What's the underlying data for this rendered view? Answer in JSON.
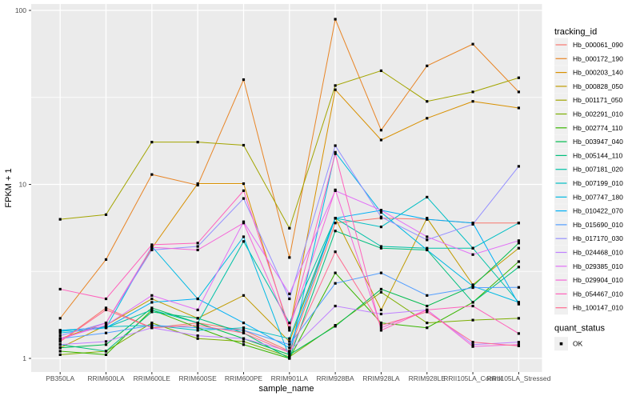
{
  "chart_data": {
    "type": "line",
    "title": "",
    "xlabel": "sample_name",
    "ylabel": "FPKM + 1",
    "y_scale": "log10",
    "ylim": [
      1,
      100
    ],
    "y_major_ticks": [
      1,
      10,
      100
    ],
    "y_minor_gridlines": [
      3.1623,
      31.623
    ],
    "grid": "on",
    "point_marker": "black-square",
    "legend_position": "right",
    "categories": [
      "PB350LA",
      "RRIM600LA",
      "RRIM600LE",
      "RRIM600SE",
      "RRIM600PE",
      "RRIM901LA",
      "RRIM928BA",
      "RRIM928LA",
      "RRIM928LE",
      "RRII105LA_Control",
      "RRII105LA_Stressed"
    ],
    "series": [
      {
        "name": "Hb_000061_090",
        "color": "#F8766D",
        "values": [
          1.25,
          1.95,
          1.5,
          1.6,
          1.45,
          1.1,
          6.0,
          6.4,
          6.3,
          6.0,
          6.0
        ]
      },
      {
        "name": "Hb_000172_190",
        "color": "#E88526",
        "values": [
          1.7,
          3.7,
          11.4,
          9.9,
          40,
          3.8,
          89,
          20.5,
          48,
          64,
          34
        ]
      },
      {
        "name": "Hb_000203_140",
        "color": "#D89000",
        "values": [
          1.3,
          1.6,
          4.3,
          10.1,
          10.1,
          1.45,
          35,
          18,
          24,
          30,
          27.5
        ]
      },
      {
        "name": "Hb_000828_050",
        "color": "#C09B00",
        "values": [
          1.15,
          1.55,
          2.2,
          1.7,
          2.3,
          1.25,
          6.4,
          1.9,
          6.4,
          2.65,
          4.3
        ]
      },
      {
        "name": "Hb_001171_050",
        "color": "#A3A500",
        "values": [
          6.3,
          6.7,
          17.5,
          17.5,
          16.8,
          5.6,
          37,
          45,
          30,
          34,
          41
        ]
      },
      {
        "name": "Hb_002291_010",
        "color": "#7CAE00",
        "values": [
          1.05,
          1.1,
          1.6,
          1.3,
          1.25,
          1.02,
          1.55,
          2.4,
          1.6,
          1.66,
          1.7
        ]
      },
      {
        "name": "Hb_002774_110",
        "color": "#39B600",
        "values": [
          1.1,
          1.05,
          1.9,
          1.5,
          1.2,
          1.0,
          3.1,
          1.6,
          1.5,
          2.1,
          3.6
        ]
      },
      {
        "name": "Hb_003947_040",
        "color": "#00BB4E",
        "values": [
          1.15,
          1.2,
          1.95,
          1.6,
          1.3,
          1.05,
          1.53,
          2.5,
          2.0,
          2.6,
          4.6
        ]
      },
      {
        "name": "Hb_005144_110",
        "color": "#00BF7D",
        "values": [
          1.2,
          1.1,
          1.85,
          1.7,
          1.4,
          1.0,
          5.4,
          4.3,
          4.2,
          2.1,
          3.35
        ]
      },
      {
        "name": "Hb_007181_020",
        "color": "#00C1A7",
        "values": [
          1.45,
          1.5,
          1.9,
          1.6,
          4.7,
          1.6,
          6.4,
          4.4,
          4.3,
          4.3,
          2.1
        ]
      },
      {
        "name": "Hb_007199_010",
        "color": "#00BFC4",
        "values": [
          1.43,
          1.52,
          1.55,
          1.45,
          1.5,
          1.3,
          6.4,
          5.7,
          8.45,
          4.3,
          6.0
        ]
      },
      {
        "name": "Hb_007747_180",
        "color": "#00B9E3",
        "values": [
          1.4,
          1.5,
          4.4,
          2.2,
          5.0,
          1.02,
          15.3,
          6.9,
          4.2,
          2.6,
          2.1
        ]
      },
      {
        "name": "Hb_010422_070",
        "color": "#00B0F6",
        "values": [
          1.45,
          1.5,
          2.1,
          2.2,
          1.6,
          1.15,
          6.4,
          7.1,
          6.3,
          6.0,
          2.05
        ]
      },
      {
        "name": "Hb_015690_010",
        "color": "#529EFF",
        "values": [
          1.3,
          1.4,
          1.55,
          1.5,
          1.45,
          1.2,
          2.7,
          3.1,
          2.3,
          2.55,
          2.56
        ]
      },
      {
        "name": "Hb_017170_030",
        "color": "#9590FF",
        "values": [
          1.35,
          1.6,
          4.2,
          4.4,
          8.3,
          2.2,
          16.7,
          6.5,
          4.8,
          5.9,
          12.7
        ]
      },
      {
        "name": "Hb_024468_010",
        "color": "#BF80FF",
        "values": [
          1.2,
          1.25,
          1.5,
          1.35,
          1.3,
          1.1,
          2.0,
          1.8,
          1.9,
          1.2,
          1.24
        ]
      },
      {
        "name": "Hb_029385_010",
        "color": "#E26EF7",
        "values": [
          1.3,
          1.55,
          2.3,
          1.9,
          6.1,
          2.35,
          9.2,
          7.1,
          5.0,
          3.95,
          4.75
        ]
      },
      {
        "name": "Hb_029904_010",
        "color": "#F567D8",
        "values": [
          1.28,
          1.6,
          4.35,
          4.2,
          6.0,
          1.5,
          9.3,
          1.5,
          1.9,
          1.17,
          1.2
        ]
      },
      {
        "name": "Hb_054467_010",
        "color": "#FF62BC",
        "values": [
          2.5,
          2.2,
          4.5,
          4.6,
          9.2,
          1.5,
          15.0,
          1.45,
          1.9,
          2.0,
          1.39
        ]
      },
      {
        "name": "Hb_100147_010",
        "color": "#FF6C91",
        "values": [
          1.25,
          1.9,
          1.5,
          1.55,
          1.4,
          1.08,
          4.1,
          1.55,
          1.85,
          1.24,
          1.18
        ]
      }
    ],
    "legend": {
      "series_legend_title": "tracking_id",
      "shape_legend_title": "quant_status",
      "shape_legend_items": [
        {
          "label": "OK",
          "marker": "black-square"
        }
      ]
    }
  },
  "colors": {
    "panel_bg": "#EBEBEB",
    "gridline": "#FFFFFF",
    "tick": "#333333",
    "tick_label": "#4D4D4D",
    "axis_title": "#000000",
    "legend_key_bg": "#F0F0F0",
    "point": "#000000",
    "background": "#FFFFFF"
  }
}
